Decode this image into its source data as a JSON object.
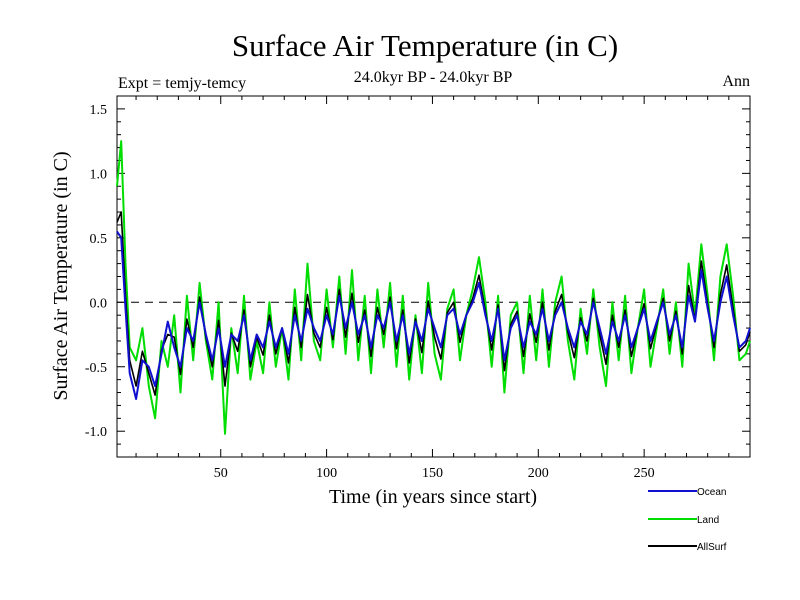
{
  "chart_data": {
    "type": "line",
    "title": "Surface Air Temperature (in C)",
    "subtitle": "24.0kyr BP - 24.0kyr BP",
    "expt_label": "Expt = temjy-temcy",
    "season_label": "Ann",
    "xlabel": "Time (in years since start)",
    "ylabel": "Surface Air Temperature (in C)",
    "xlim": [
      1,
      300
    ],
    "ylim": [
      -1.2,
      1.6
    ],
    "xticks": [
      50,
      100,
      150,
      200,
      250
    ],
    "xtick_labels": [
      "50",
      "100",
      "150",
      "200",
      "250"
    ],
    "yticks": [
      -1.0,
      -0.5,
      0.0,
      0.5,
      1.0,
      1.5
    ],
    "ytick_labels": [
      "-1.0",
      "-0.5",
      "0.0",
      "0.5",
      "1.0",
      "1.5"
    ],
    "reference_line": 0.0,
    "legend_position": "bottom-right",
    "series": [
      {
        "name": "Ocean",
        "color": "#1010d0",
        "x": [
          1,
          3,
          5,
          7,
          10,
          13,
          16,
          19,
          22,
          25,
          28,
          31,
          34,
          37,
          40,
          43,
          46,
          49,
          52,
          55,
          58,
          61,
          64,
          67,
          70,
          73,
          76,
          79,
          82,
          85,
          88,
          91,
          94,
          97,
          100,
          103,
          106,
          109,
          112,
          115,
          118,
          121,
          124,
          127,
          130,
          133,
          136,
          139,
          142,
          145,
          148,
          151,
          154,
          157,
          160,
          163,
          166,
          169,
          172,
          175,
          178,
          181,
          184,
          187,
          190,
          193,
          196,
          199,
          202,
          205,
          208,
          211,
          214,
          217,
          220,
          223,
          226,
          229,
          232,
          235,
          238,
          241,
          244,
          247,
          250,
          253,
          256,
          259,
          262,
          265,
          268,
          271,
          274,
          277,
          280,
          283,
          286,
          289,
          292,
          295,
          298,
          300
        ],
        "y": [
          0.55,
          0.5,
          -0.05,
          -0.55,
          -0.75,
          -0.45,
          -0.5,
          -0.65,
          -0.4,
          -0.15,
          -0.35,
          -0.5,
          -0.2,
          -0.3,
          0.0,
          -0.25,
          -0.45,
          -0.2,
          -0.5,
          -0.25,
          -0.3,
          -0.1,
          -0.45,
          -0.25,
          -0.35,
          -0.15,
          -0.35,
          -0.2,
          -0.4,
          -0.1,
          -0.3,
          -0.05,
          -0.2,
          -0.3,
          -0.1,
          -0.25,
          0.05,
          -0.2,
          0.0,
          -0.25,
          -0.1,
          -0.35,
          -0.1,
          -0.2,
          0.0,
          -0.3,
          -0.1,
          -0.4,
          -0.15,
          -0.3,
          -0.05,
          -0.2,
          -0.35,
          -0.1,
          -0.05,
          -0.25,
          -0.1,
          0.0,
          0.15,
          -0.1,
          -0.3,
          -0.05,
          -0.45,
          -0.2,
          -0.1,
          -0.35,
          -0.15,
          -0.25,
          -0.05,
          -0.3,
          -0.1,
          0.0,
          -0.2,
          -0.35,
          -0.15,
          -0.25,
          0.0,
          -0.2,
          -0.4,
          -0.15,
          -0.3,
          -0.1,
          -0.35,
          -0.2,
          -0.05,
          -0.3,
          -0.15,
          0.0,
          -0.25,
          -0.1,
          -0.35,
          0.05,
          -0.15,
          0.25,
          -0.05,
          -0.3,
          0.0,
          0.2,
          -0.1,
          -0.35,
          -0.3,
          -0.2
        ]
      },
      {
        "name": "Land",
        "color": "#00dd00",
        "x": [
          1,
          3,
          5,
          7,
          10,
          13,
          16,
          19,
          22,
          25,
          28,
          31,
          34,
          37,
          40,
          43,
          46,
          49,
          52,
          55,
          58,
          61,
          64,
          67,
          70,
          73,
          76,
          79,
          82,
          85,
          88,
          91,
          94,
          97,
          100,
          103,
          106,
          109,
          112,
          115,
          118,
          121,
          124,
          127,
          130,
          133,
          136,
          139,
          142,
          145,
          148,
          151,
          154,
          157,
          160,
          163,
          166,
          169,
          172,
          175,
          178,
          181,
          184,
          187,
          190,
          193,
          196,
          199,
          202,
          205,
          208,
          211,
          214,
          217,
          220,
          223,
          226,
          229,
          232,
          235,
          238,
          241,
          244,
          247,
          250,
          253,
          256,
          259,
          262,
          265,
          268,
          271,
          274,
          277,
          280,
          283,
          286,
          289,
          292,
          295,
          298,
          300
        ],
        "y": [
          0.9,
          1.25,
          0.3,
          -0.35,
          -0.45,
          -0.2,
          -0.65,
          -0.9,
          -0.3,
          -0.5,
          -0.1,
          -0.7,
          0.05,
          -0.45,
          0.15,
          -0.3,
          -0.6,
          0.0,
          -1.02,
          -0.2,
          -0.55,
          0.05,
          -0.6,
          -0.3,
          -0.55,
          0.0,
          -0.5,
          -0.2,
          -0.6,
          0.1,
          -0.45,
          0.3,
          -0.3,
          -0.45,
          0.1,
          -0.35,
          0.2,
          -0.4,
          0.25,
          -0.45,
          0.05,
          -0.55,
          0.1,
          -0.35,
          0.15,
          -0.5,
          0.05,
          -0.6,
          -0.1,
          -0.55,
          0.15,
          -0.4,
          -0.6,
          -0.05,
          0.1,
          -0.45,
          -0.1,
          0.1,
          0.35,
          0.0,
          -0.5,
          0.05,
          -0.7,
          -0.1,
          0.0,
          -0.55,
          0.05,
          -0.45,
          0.1,
          -0.5,
          0.0,
          0.2,
          -0.3,
          -0.6,
          -0.05,
          -0.4,
          0.1,
          -0.35,
          -0.65,
          0.0,
          -0.45,
          0.05,
          -0.55,
          -0.2,
          0.1,
          -0.5,
          -0.2,
          0.1,
          -0.4,
          0.0,
          -0.5,
          0.3,
          -0.1,
          0.45,
          0.05,
          -0.45,
          0.2,
          0.45,
          0.05,
          -0.45,
          -0.4,
          -0.3
        ]
      },
      {
        "name": "AllSurf",
        "color": "#000000",
        "x": [
          1,
          3,
          5,
          7,
          10,
          13,
          16,
          19,
          22,
          25,
          28,
          31,
          34,
          37,
          40,
          43,
          46,
          49,
          52,
          55,
          58,
          61,
          64,
          67,
          70,
          73,
          76,
          79,
          82,
          85,
          88,
          91,
          94,
          97,
          100,
          103,
          106,
          109,
          112,
          115,
          118,
          121,
          124,
          127,
          130,
          133,
          136,
          139,
          142,
          145,
          148,
          151,
          154,
          157,
          160,
          163,
          166,
          169,
          172,
          175,
          178,
          181,
          184,
          187,
          190,
          193,
          196,
          199,
          202,
          205,
          208,
          211,
          214,
          217,
          220,
          223,
          226,
          229,
          232,
          235,
          238,
          241,
          244,
          247,
          250,
          253,
          256,
          259,
          262,
          265,
          268,
          271,
          274,
          277,
          280,
          283,
          286,
          289,
          292,
          295,
          298,
          300
        ],
        "y": [
          0.62,
          0.7,
          0.05,
          -0.45,
          -0.65,
          -0.38,
          -0.55,
          -0.72,
          -0.37,
          -0.25,
          -0.27,
          -0.56,
          -0.13,
          -0.35,
          0.04,
          -0.27,
          -0.5,
          -0.14,
          -0.65,
          -0.24,
          -0.38,
          -0.06,
          -0.5,
          -0.27,
          -0.41,
          -0.1,
          -0.4,
          -0.2,
          -0.47,
          -0.04,
          -0.35,
          0.06,
          -0.24,
          -0.35,
          -0.04,
          -0.29,
          0.1,
          -0.27,
          0.07,
          -0.31,
          -0.06,
          -0.42,
          -0.04,
          -0.25,
          0.04,
          -0.36,
          -0.06,
          -0.47,
          -0.13,
          -0.39,
          0.01,
          -0.27,
          -0.44,
          -0.08,
          0.0,
          -0.31,
          -0.1,
          0.03,
          0.21,
          -0.07,
          -0.37,
          -0.02,
          -0.53,
          -0.17,
          -0.07,
          -0.42,
          -0.09,
          -0.31,
          0.0,
          -0.37,
          -0.07,
          0.06,
          -0.23,
          -0.43,
          -0.12,
          -0.3,
          0.03,
          -0.25,
          -0.48,
          -0.1,
          -0.35,
          -0.06,
          -0.42,
          -0.2,
          -0.01,
          -0.36,
          -0.17,
          0.03,
          -0.3,
          -0.07,
          -0.4,
          0.13,
          -0.14,
          0.32,
          -0.02,
          -0.35,
          0.06,
          0.29,
          -0.05,
          -0.38,
          -0.33,
          -0.23
        ]
      }
    ]
  }
}
